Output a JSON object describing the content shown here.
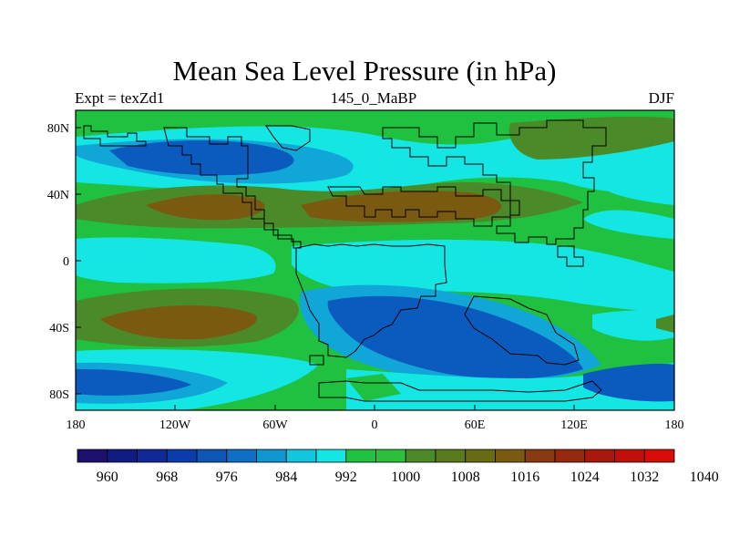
{
  "title": "Mean Sea Level Pressure (in hPa)",
  "subtitle_left": "Expt = texZd1",
  "subtitle_center": "145_0_MaBP",
  "subtitle_right": "DJF",
  "lat_labels": [
    "80N",
    "40N",
    "0",
    "40S",
    "80S"
  ],
  "lon_labels": [
    "180",
    "120W",
    "60W",
    "0",
    "60E",
    "120E",
    "180"
  ],
  "colorbar": {
    "labels": [
      "960",
      "968",
      "976",
      "984",
      "992",
      "1000",
      "1008",
      "1016",
      "1024",
      "1032",
      "1040"
    ],
    "colors": [
      "#1c0f6e",
      "#101b82",
      "#0f2a96",
      "#0a3cac",
      "#0c56b8",
      "#0f6fc4",
      "#1196d2",
      "#13c5df",
      "#14e6e4",
      "#20c040",
      "#2dbf3c",
      "#4b8a28",
      "#5a7a1e",
      "#686a14",
      "#7a5a10",
      "#8a3a10",
      "#96280e",
      "#a8180c",
      "#c0100a",
      "#d80c08"
    ]
  },
  "map": {
    "variable": "Mean Sea Level Pressure",
    "units": "hPa",
    "fill_colors": {
      "low": "#0a5bbd",
      "mid_low": "#11a6d8",
      "near_1000": "#14e6e4",
      "mid_high": "#20c040",
      "high": "#4b8a28",
      "highest": "#7a5a10"
    }
  }
}
